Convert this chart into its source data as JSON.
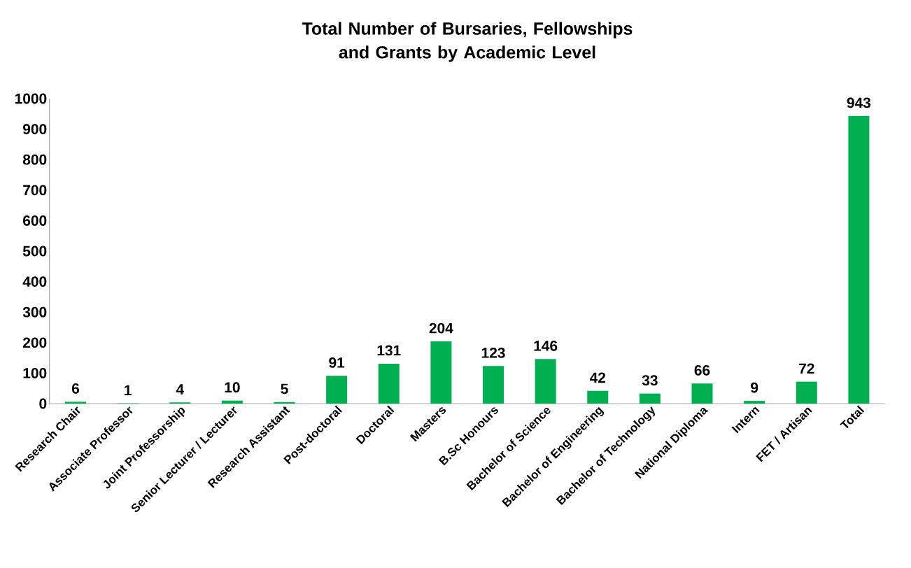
{
  "chart_data": {
    "type": "bar",
    "title": "Total Number of Bursaries, Fellowships and Grants by Academic Level",
    "categories": [
      "Research Chair",
      "Associate Professor",
      "Joint Professorship",
      "Senior Lecturer / Lecturer",
      "Research Assistant",
      "Post-doctoral",
      "Doctoral",
      "Masters",
      "B.Sc Honours",
      "Bachelor of Science",
      "Bachelor of Engineering",
      "Bachelor of Technology",
      "National Diploma",
      "Intern",
      "FET / Artisan",
      "Total"
    ],
    "values": [
      6,
      1,
      4,
      10,
      5,
      91,
      131,
      204,
      123,
      146,
      42,
      33,
      66,
      9,
      72,
      943
    ],
    "color": "#00b050",
    "ylim": [
      0,
      1000
    ],
    "yticks": [
      0,
      100,
      200,
      300,
      400,
      500,
      600,
      700,
      800,
      900,
      1000
    ],
    "data_labels": true,
    "grid": false
  }
}
